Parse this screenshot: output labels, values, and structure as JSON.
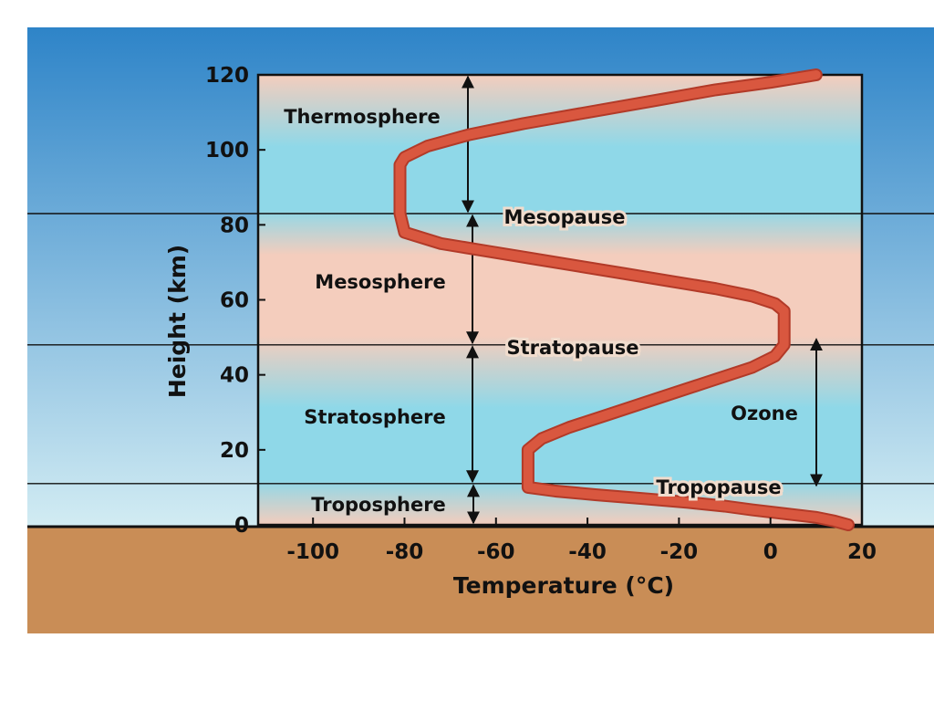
{
  "colors": {
    "sky_top": "#2e84c8",
    "sky_bottom": "#d2ecf3",
    "ground": "#c98d56",
    "band_pink": "#f4cdbd",
    "band_cyan": "#8fd8e8",
    "curve": "#d9573f",
    "ink": "#111111"
  },
  "chart_data": {
    "type": "line",
    "title": "",
    "xlabel": "Temperature (°C)",
    "ylabel": "Height (km)",
    "xlim": [
      -112,
      20
    ],
    "ylim": [
      0,
      120
    ],
    "x_ticks": [
      "-100",
      "-80",
      "-60",
      "-40",
      "-20",
      "0",
      "20"
    ],
    "y_ticks": [
      "0",
      "20",
      "40",
      "60",
      "80",
      "100",
      "120"
    ],
    "grid": false,
    "series": [
      {
        "x": [
          17,
          14,
          10,
          3,
          -4,
          -10,
          -18,
          -28,
          -38,
          -47,
          -53,
          -53,
          -53,
          -50,
          -44,
          -34,
          -24,
          -14,
          -4,
          1,
          3,
          3,
          1,
          -4,
          -12,
          -22,
          -32,
          -42,
          -52,
          -62,
          -72,
          -80,
          -81,
          -81,
          -80,
          -75,
          -66,
          -54,
          -40,
          -26,
          -12,
          0,
          10
        ],
        "y": [
          0,
          1,
          2,
          3,
          4,
          5,
          6,
          7,
          8,
          9,
          10,
          15,
          20,
          23,
          26,
          30,
          34,
          38,
          42,
          45,
          48,
          57,
          59,
          61,
          63,
          65,
          67,
          69,
          71,
          73,
          75,
          78,
          83,
          96,
          98,
          101,
          104,
          107,
          110,
          113,
          116,
          118,
          120
        ]
      }
    ],
    "boundaries": [
      {
        "label": "Tropopause",
        "height": 11
      },
      {
        "label": "Stratopause",
        "height": 48
      },
      {
        "label": "Mesopause",
        "height": 83
      }
    ],
    "layers": [
      {
        "label": "Troposphere",
        "from": 0,
        "to": 11
      },
      {
        "label": "Stratosphere",
        "from": 11,
        "to": 48
      },
      {
        "label": "Mesosphere",
        "from": 48,
        "to": 83
      },
      {
        "label": "Thermosphere",
        "from": 83,
        "to": 120
      }
    ],
    "annotations": [
      {
        "label": "Ozone",
        "from": 10,
        "to": 50
      }
    ]
  }
}
